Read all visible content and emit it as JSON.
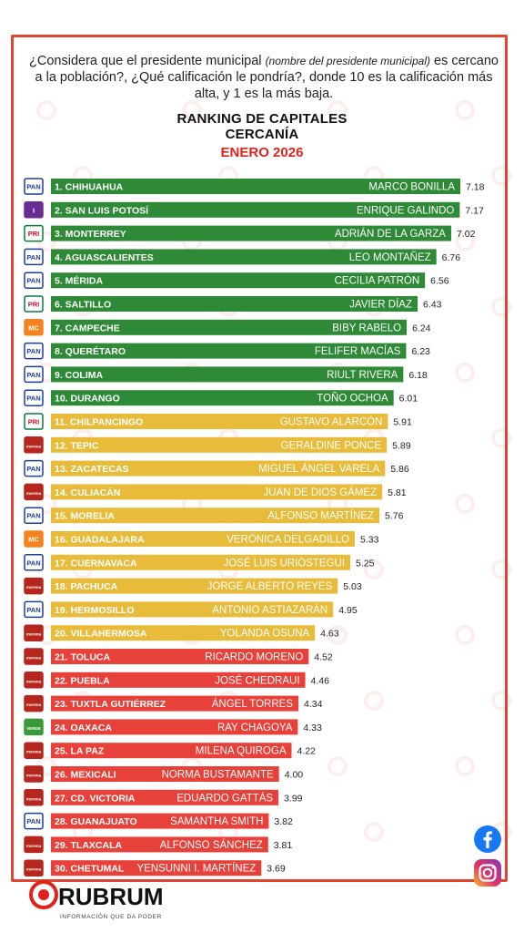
{
  "question": {
    "part1": "¿Considera que el presidente municipal ",
    "part_italic": "(nombre del presidente municipal)",
    "part2": " es cercano a la población?, ¿Qué calificación le pondría?, donde 10 es la calificación más alta, y 1 es la más baja."
  },
  "chart_data": {
    "type": "bar",
    "orientation": "horizontal",
    "title": "RANKING DE CAPITALES",
    "subtitle": "CERCANÍA",
    "period": "ENERO 2026",
    "xlim": [
      0,
      7.18
    ],
    "grid": false,
    "legend": "none",
    "colors": {
      "high": "#2e8a36",
      "mid": "#e8bc3a",
      "low": "#e8413a"
    },
    "rows": [
      {
        "rank": "1.",
        "city": "CHIHUAHUA",
        "name": "MARCO BONILLA",
        "value": 7.18,
        "value_label": "7.18",
        "party": "PAN",
        "tier": "high"
      },
      {
        "rank": "2.",
        "city": "SAN LUIS POTOSÍ",
        "name": "ENRIQUE GALINDO",
        "value": 7.17,
        "value_label": "7.17",
        "party": "I",
        "tier": "high"
      },
      {
        "rank": "3.",
        "city": "MONTERREY",
        "name": "ADRIÁN DE LA GARZA",
        "value": 7.02,
        "value_label": "7.02",
        "party": "PRI",
        "tier": "high"
      },
      {
        "rank": "4.",
        "city": "AGUASCALIENTES",
        "name": "LEO MONTAÑEZ",
        "value": 6.76,
        "value_label": "6.76",
        "party": "PAN",
        "tier": "high"
      },
      {
        "rank": "5.",
        "city": "MÉRIDA",
        "name": "CECILIA PATRÓN",
        "value": 6.56,
        "value_label": "6.56",
        "party": "PAN",
        "tier": "high"
      },
      {
        "rank": "6.",
        "city": "SALTILLO",
        "name": "JAVIER DÍAZ",
        "value": 6.43,
        "value_label": "6.43",
        "party": "PRI",
        "tier": "high"
      },
      {
        "rank": "7.",
        "city": "CAMPECHE",
        "name": "BIBY RABELO",
        "value": 6.24,
        "value_label": "6.24",
        "party": "MC",
        "tier": "high"
      },
      {
        "rank": "8.",
        "city": "QUERÉTARO",
        "name": "FELIFER MACÍAS",
        "value": 6.23,
        "value_label": "6.23",
        "party": "PAN",
        "tier": "high"
      },
      {
        "rank": "9.",
        "city": "COLIMA",
        "name": "RIULT RIVERA",
        "value": 6.18,
        "value_label": "6.18",
        "party": "PAN",
        "tier": "high"
      },
      {
        "rank": "10.",
        "city": "DURANGO",
        "name": "TOÑO OCHOA",
        "value": 6.01,
        "value_label": "6.01",
        "party": "PAN",
        "tier": "high"
      },
      {
        "rank": "11.",
        "city": "CHILPANCINGO",
        "name": "GUSTAVO ALARCÓN",
        "value": 5.91,
        "value_label": "5.91",
        "party": "PRI",
        "tier": "mid"
      },
      {
        "rank": "12.",
        "city": "TEPIC",
        "name": "GERALDINE PONCE",
        "value": 5.89,
        "value_label": "5.89",
        "party": "MORENA",
        "tier": "mid"
      },
      {
        "rank": "13.",
        "city": "ZACATECAS",
        "name": "MIGUEL ÁNGEL VARELA",
        "value": 5.86,
        "value_label": "5.86",
        "party": "PAN",
        "tier": "mid"
      },
      {
        "rank": "14.",
        "city": "CULIACÁN",
        "name": "JUAN DE DIOS GÁMEZ",
        "value": 5.81,
        "value_label": "5.81",
        "party": "MORENA",
        "tier": "mid"
      },
      {
        "rank": "15.",
        "city": "MORELIA",
        "name": "ALFONSO MARTÍNEZ",
        "value": 5.76,
        "value_label": "5.76",
        "party": "PAN",
        "tier": "mid"
      },
      {
        "rank": "16.",
        "city": "GUADALAJARA",
        "name": "VERÓNICA DELGADILLO",
        "value": 5.33,
        "value_label": "5.33",
        "party": "MC",
        "tier": "mid"
      },
      {
        "rank": "17.",
        "city": "CUERNAVACA",
        "name": "JOSÉ LUIS URIÓSTEGUI",
        "value": 5.25,
        "value_label": "5.25",
        "party": "PAN",
        "tier": "mid"
      },
      {
        "rank": "18.",
        "city": "PACHUCA",
        "name": "JORGE ALBERTO REYES",
        "value": 5.03,
        "value_label": "5.03",
        "party": "MORENA",
        "tier": "mid"
      },
      {
        "rank": "19.",
        "city": "HERMOSILLO",
        "name": "ANTONIO ASTIAZARÁN",
        "value": 4.95,
        "value_label": "4.95",
        "party": "PAN",
        "tier": "mid"
      },
      {
        "rank": "20.",
        "city": "VILLAHERMOSA",
        "name": "YOLANDA OSUNA",
        "value": 4.63,
        "value_label": "4.63",
        "party": "MORENA",
        "tier": "mid"
      },
      {
        "rank": "21.",
        "city": "TOLUCA",
        "name": "RICARDO MORENO",
        "value": 4.52,
        "value_label": "4.52",
        "party": "MORENA",
        "tier": "low"
      },
      {
        "rank": "22.",
        "city": "PUEBLA",
        "name": "JOSÉ CHEDRAUI",
        "value": 4.46,
        "value_label": "4.46",
        "party": "MORENA",
        "tier": "low"
      },
      {
        "rank": "23.",
        "city": "TUXTLA GUTIÉRREZ",
        "name": "ÁNGEL TORRES",
        "value": 4.34,
        "value_label": "4.34",
        "party": "MORENA",
        "tier": "low"
      },
      {
        "rank": "24.",
        "city": "OAXACA",
        "name": "RAY CHAGOYA",
        "value": 4.33,
        "value_label": "4.33",
        "party": "VERDE",
        "tier": "low"
      },
      {
        "rank": "25.",
        "city": "LA PAZ",
        "name": "MILENA QUIROGA",
        "value": 4.22,
        "value_label": "4.22",
        "party": "MORENA",
        "tier": "low"
      },
      {
        "rank": "26.",
        "city": "MEXICALI",
        "name": "NORMA BUSTAMANTE",
        "value": 4.0,
        "value_label": "4.00",
        "party": "MORENA",
        "tier": "low"
      },
      {
        "rank": "27.",
        "city": "CD. VICTORIA",
        "name": "EDUARDO GATTÁS",
        "value": 3.99,
        "value_label": "3.99",
        "party": "MORENA",
        "tier": "low"
      },
      {
        "rank": "28.",
        "city": "GUANAJUATO",
        "name": "SAMANTHA SMITH",
        "value": 3.82,
        "value_label": "3.82",
        "party": "PAN",
        "tier": "low"
      },
      {
        "rank": "29.",
        "city": "TLAXCALA",
        "name": "ALFONSO SÁNCHEZ",
        "value": 3.81,
        "value_label": "3.81",
        "party": "MORENA",
        "tier": "low"
      },
      {
        "rank": "30.",
        "city": "CHETUMAL",
        "name": "YENSUNNI I. MARTÍNEZ",
        "value": 3.69,
        "value_label": "3.69",
        "party": "MORENA",
        "tier": "low"
      }
    ]
  },
  "party_logos": {
    "PAN": {
      "text": "PAN",
      "bg": "#ffffff",
      "fg": "#1f3f99",
      "border": "#1f3f99"
    },
    "PRI": {
      "text": "PRI",
      "bg": "#ffffff",
      "fg": "#c8102e",
      "border": "#0a7a3d"
    },
    "MORENA": {
      "text": "morena",
      "bg": "#b5261e",
      "fg": "#ffffff",
      "border": "#b5261e"
    },
    "MC": {
      "text": "MC",
      "bg": "#f58220",
      "fg": "#ffffff",
      "border": "#f58220"
    },
    "VERDE": {
      "text": "VERDE",
      "bg": "#3a9a3a",
      "fg": "#ffffff",
      "border": "#3a9a3a"
    },
    "I": {
      "text": "I",
      "bg": "#6a2c91",
      "fg": "#ffffff",
      "border": "#6a2c91"
    }
  },
  "brand": {
    "name": "RUBRUM",
    "tagline": "INFORMACIÓN QUE DA PODER",
    "color": "#e0231c"
  },
  "social": [
    {
      "icon": "facebook-icon",
      "color": "#1877f2"
    },
    {
      "icon": "instagram-icon",
      "color": "#d6249f"
    }
  ]
}
